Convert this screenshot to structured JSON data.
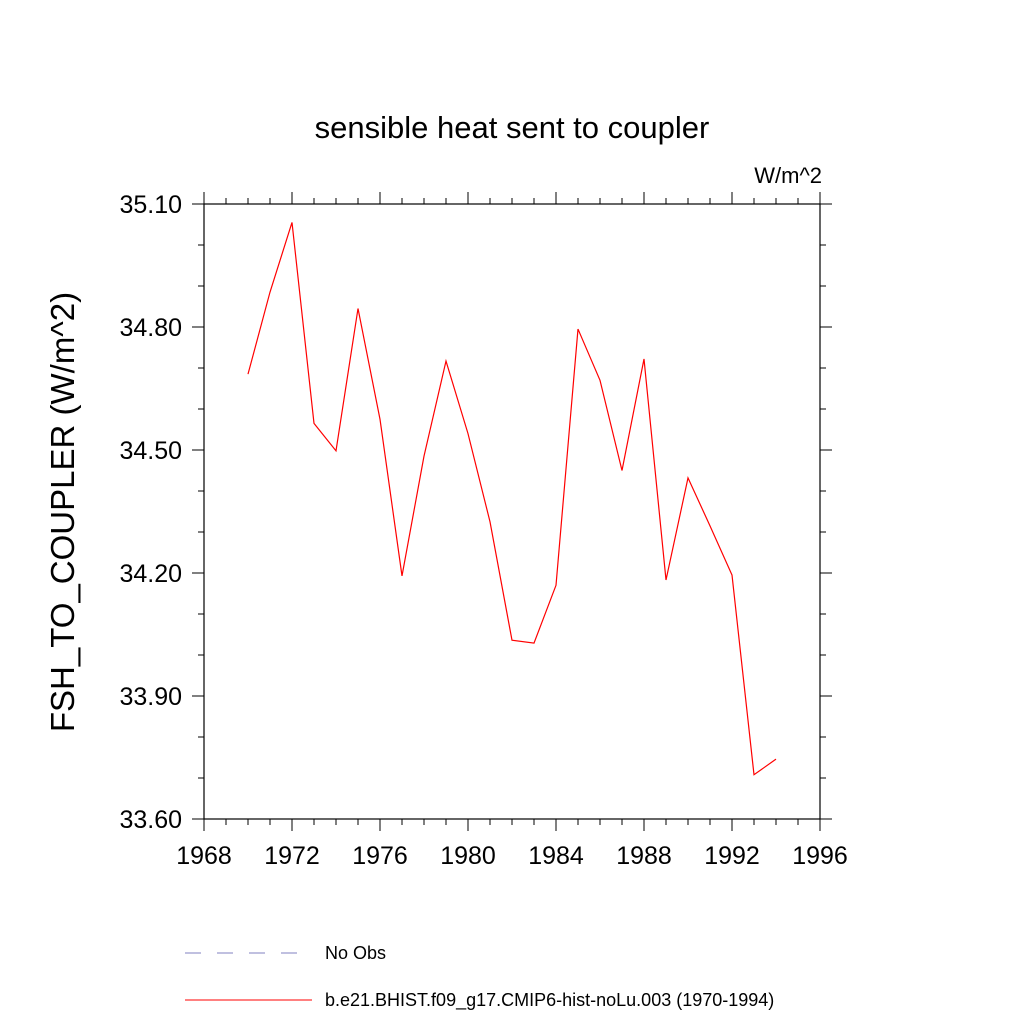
{
  "chart_data": {
    "type": "line",
    "title": "sensible heat sent to coupler",
    "units": "W/m^2",
    "ylabel": "FSH_TO_COUPLER  (W/m^2)",
    "xlabel": "",
    "xlim": [
      1968,
      1996
    ],
    "ylim": [
      33.6,
      35.1
    ],
    "xticks": [
      1968,
      1972,
      1976,
      1980,
      1984,
      1988,
      1992,
      1996
    ],
    "xtick_labels": [
      "1968",
      "1972",
      "1976",
      "1980",
      "1984",
      "1988",
      "1992",
      "1996"
    ],
    "yticks": [
      33.6,
      33.9,
      34.2,
      34.5,
      34.8,
      35.1
    ],
    "ytick_labels": [
      "33.60",
      "33.90",
      "34.20",
      "34.50",
      "34.80",
      "35.10"
    ],
    "grid": false,
    "legend_position": "bottom",
    "series": [
      {
        "name": "No Obs",
        "color": "#8080c0",
        "dashed": true,
        "x": [],
        "values": []
      },
      {
        "name": "b.e21.BHIST.f09_g17.CMIP6-hist-noLu.003 (1970-1994)",
        "color": "#ff0000",
        "dashed": false,
        "x": [
          1970,
          1971,
          1972,
          1973,
          1974,
          1975,
          1976,
          1977,
          1978,
          1979,
          1980,
          1981,
          1982,
          1983,
          1984,
          1985,
          1986,
          1987,
          1988,
          1989,
          1990,
          1991,
          1992,
          1993,
          1994
        ],
        "values": [
          34.685,
          34.885,
          35.055,
          34.565,
          34.498,
          34.845,
          34.575,
          34.193,
          34.485,
          34.717,
          34.54,
          34.325,
          34.036,
          34.029,
          34.17,
          34.795,
          34.67,
          34.45,
          34.722,
          34.183,
          34.432,
          34.315,
          34.195,
          33.708,
          33.746
        ]
      }
    ]
  }
}
